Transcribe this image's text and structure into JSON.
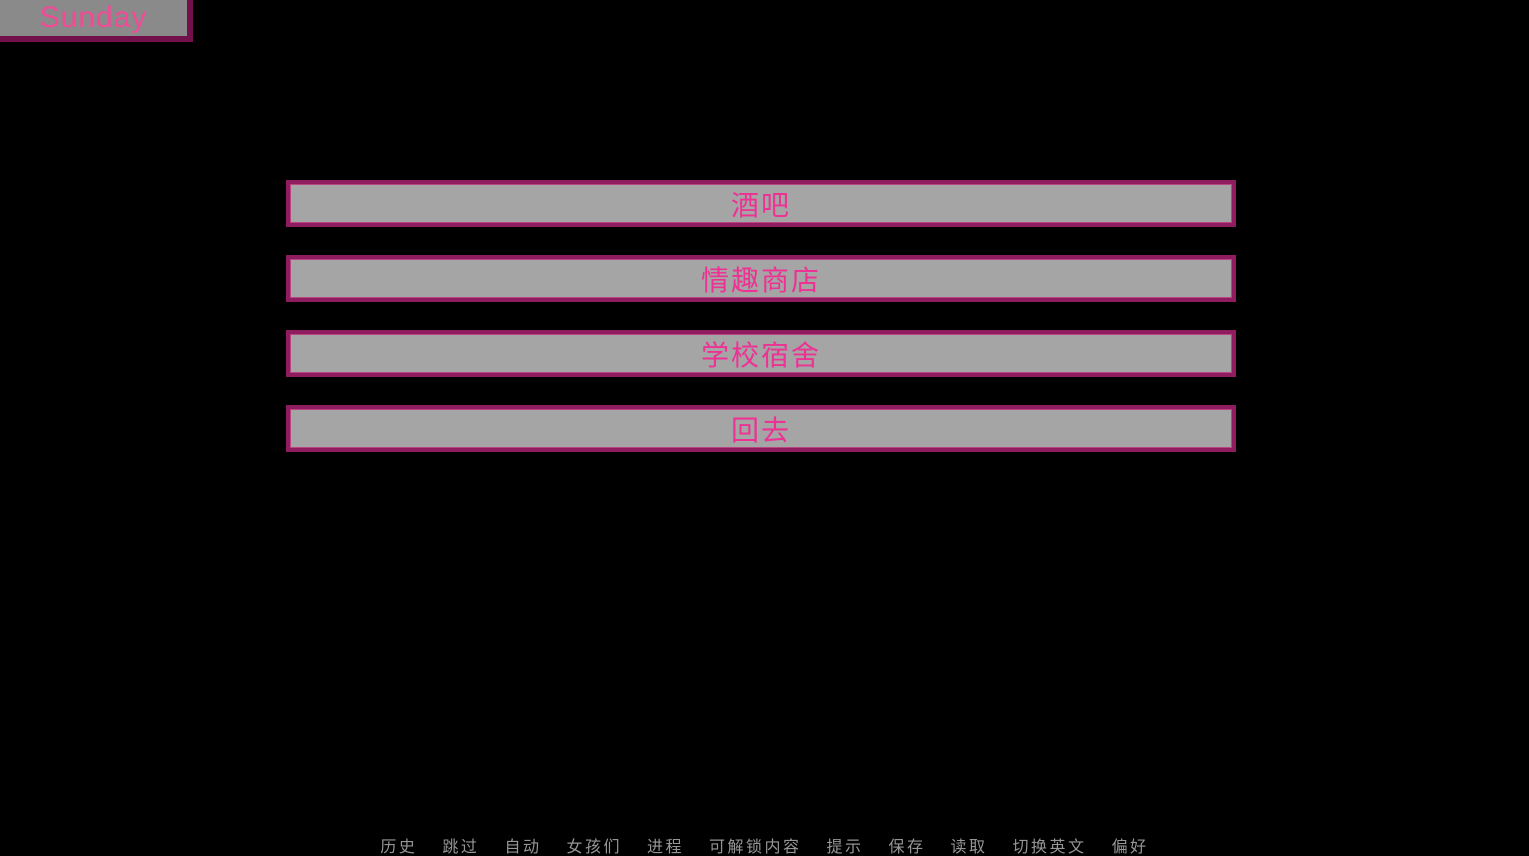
{
  "day_banner": {
    "label": "Sunday"
  },
  "choice_menu": {
    "buttons": [
      {
        "label": "酒吧"
      },
      {
        "label": "情趣商店"
      },
      {
        "label": "学校宿舍"
      },
      {
        "label": "回去"
      }
    ]
  },
  "quick_menu": {
    "items": [
      {
        "label": "历史"
      },
      {
        "label": "跳过"
      },
      {
        "label": "自动"
      },
      {
        "label": "女孩们"
      },
      {
        "label": "进程"
      },
      {
        "label": "可解锁内容"
      },
      {
        "label": "提示"
      },
      {
        "label": "保存"
      },
      {
        "label": "读取"
      },
      {
        "label": "切换英文"
      },
      {
        "label": "偏好"
      }
    ]
  },
  "colors": {
    "background": "#000000",
    "accent_pink": "#ee3194",
    "banner_pink": "#f04b96",
    "button_border_magenta": "#8e1c5e",
    "button_inner_edge": "#b94583",
    "button_bg_gray": "#a5a5a5",
    "banner_bg_gray": "#8a8a8a",
    "banner_border_maroon": "#71104a",
    "quick_menu_gray": "#969696"
  }
}
